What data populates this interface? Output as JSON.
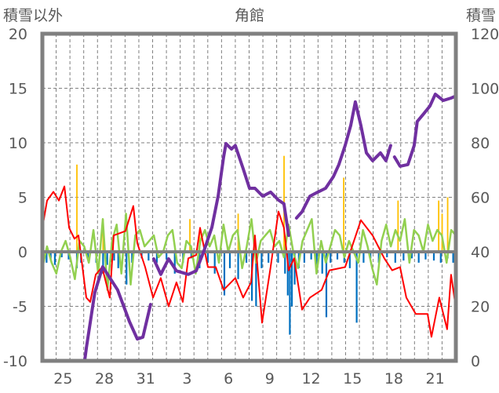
{
  "chart_data": {
    "type": "line",
    "title": "角館",
    "ylabel_left": "積雪以外",
    "ylabel_right": "積雪",
    "ylim_left": [
      -10,
      20
    ],
    "ylim_right": [
      0,
      120
    ],
    "yticks_left": [
      "20",
      "15",
      "10",
      "5",
      "0",
      "-5",
      "-10"
    ],
    "yticks_right": [
      "120",
      "100",
      "80",
      "60",
      "40",
      "20",
      "0"
    ],
    "xlim_days": [
      0,
      30
    ],
    "xticks": [
      {
        "day": 1.5,
        "label": "25"
      },
      {
        "day": 4.5,
        "label": "28"
      },
      {
        "day": 7.5,
        "label": "31"
      },
      {
        "day": 10.5,
        "label": "3"
      },
      {
        "day": 13.5,
        "label": "6"
      },
      {
        "day": 16.5,
        "label": "9"
      },
      {
        "day": 19.5,
        "label": "12"
      },
      {
        "day": 22.5,
        "label": "15"
      },
      {
        "day": 25.5,
        "label": "18"
      },
      {
        "day": 28.5,
        "label": "21"
      }
    ],
    "grid": true,
    "colors": {
      "snow": "#7030a0",
      "temp": "#ff0000",
      "green": "#92d050",
      "blue": "#0070c0",
      "orange": "#ffc000",
      "frame": "#808080"
    },
    "series": [
      {
        "name": "snow_depth",
        "axis": "right",
        "points": [
          [
            0,
            0
          ],
          [
            3.07,
            0
          ],
          [
            3.2,
            5
          ],
          [
            3.5,
            15
          ],
          [
            3.8,
            25
          ],
          [
            4.38,
            34.5
          ],
          [
            5.46,
            26
          ],
          [
            6.32,
            14.4
          ],
          [
            6.89,
            8
          ],
          [
            7.29,
            8.7
          ],
          [
            7.85,
            20.7
          ],
          null,
          [
            8.08,
            37.4
          ],
          [
            8.59,
            31.7
          ],
          [
            9.16,
            37.4
          ],
          [
            9.73,
            33
          ],
          [
            10.59,
            31.7
          ],
          [
            11.16,
            33
          ],
          [
            11.72,
            40.3
          ],
          [
            12.3,
            49
          ],
          [
            12.75,
            60.4
          ],
          [
            13.15,
            74.8
          ],
          [
            13.32,
            79.7
          ],
          [
            13.72,
            77.7
          ],
          [
            14,
            79
          ],
          [
            14.57,
            70.5
          ],
          [
            15.03,
            63.3
          ],
          [
            15.42,
            63.3
          ],
          [
            15.99,
            60.4
          ],
          [
            16.56,
            61.9
          ],
          [
            17.13,
            59
          ],
          [
            17.53,
            57.6
          ],
          [
            17.87,
            46
          ],
          null,
          [
            18.44,
            52.4
          ],
          [
            18.84,
            54.7
          ],
          [
            19.41,
            60.4
          ],
          [
            19.98,
            61.9
          ],
          [
            20.55,
            63.3
          ],
          [
            21.12,
            67.6
          ],
          [
            21.51,
            72
          ],
          [
            21.97,
            79
          ],
          [
            22.37,
            86.3
          ],
          [
            22.71,
            95
          ],
          [
            23.11,
            86.3
          ],
          [
            23.51,
            76.3
          ],
          [
            23.96,
            73.4
          ],
          [
            24.53,
            76.3
          ],
          [
            24.93,
            73.4
          ],
          [
            25.27,
            79
          ],
          null,
          [
            25.55,
            74.8
          ],
          [
            25.95,
            71.4
          ],
          [
            26.52,
            72
          ],
          [
            26.98,
            79
          ],
          [
            27.2,
            87.8
          ],
          [
            27.66,
            90.6
          ],
          [
            28.12,
            93.5
          ],
          [
            28.51,
            97.8
          ],
          [
            29.08,
            95.5
          ],
          [
            29.65,
            96.4
          ],
          [
            29.94,
            97
          ]
        ]
      },
      {
        "name": "temperature",
        "axis": "left",
        "points": [
          [
            0,
            2.2
          ],
          [
            0.34,
            4.7
          ],
          [
            0.8,
            5.5
          ],
          [
            1.2,
            4.7
          ],
          [
            1.6,
            6
          ],
          [
            1.94,
            2.2
          ],
          [
            2.33,
            1.2
          ],
          [
            2.62,
            1.5
          ],
          [
            3.19,
            -4.2
          ],
          [
            3.47,
            -4.6
          ],
          [
            3.87,
            -2.1
          ],
          [
            4.33,
            -1.4
          ],
          [
            4.89,
            -4.2
          ],
          [
            5.18,
            1.5
          ],
          [
            6.03,
            1.9
          ],
          [
            6.6,
            4.2
          ],
          [
            6.89,
            0.8
          ],
          [
            7.46,
            -1.4
          ],
          [
            8.03,
            -4.2
          ],
          [
            8.59,
            -2.4
          ],
          [
            9.16,
            -5
          ],
          [
            9.73,
            -2.8
          ],
          [
            10.19,
            -4.6
          ],
          [
            10.59,
            -0.6
          ],
          [
            11.16,
            -0.3
          ],
          [
            11.44,
            2.2
          ],
          [
            12.01,
            -1.4
          ],
          [
            12.58,
            -1.4
          ],
          [
            13.15,
            -3.5
          ],
          [
            14,
            -2.4
          ],
          [
            14.57,
            -4.2
          ],
          [
            15.14,
            -2.8
          ],
          [
            15.42,
            1.5
          ],
          [
            15.94,
            -6.5
          ],
          [
            16.56,
            -1.4
          ],
          [
            17.13,
            3.7
          ],
          [
            17.53,
            2.2
          ],
          [
            17.87,
            -1.7
          ],
          [
            18.27,
            -0.6
          ],
          [
            18.84,
            -5.3
          ],
          [
            19.41,
            -4.2
          ],
          [
            20.26,
            -3.5
          ],
          [
            20.83,
            -1.7
          ],
          [
            21.97,
            -1.4
          ],
          [
            23.11,
            2.9
          ],
          [
            23.96,
            1.5
          ],
          [
            24.81,
            -0.6
          ],
          [
            25.38,
            -1.7
          ],
          [
            25.95,
            -1.4
          ],
          [
            26.41,
            -4.2
          ],
          [
            27.09,
            -5.7
          ],
          [
            27.95,
            -5.7
          ],
          [
            28.23,
            -7.8
          ],
          [
            28.8,
            -4.2
          ],
          [
            29.37,
            -7.1
          ],
          [
            29.65,
            -2.1
          ],
          [
            29.94,
            -4.6
          ]
        ]
      },
      {
        "name": "green_series",
        "axis": "left",
        "values": [
          -1.5,
          0.5,
          -1,
          -2,
          0,
          1,
          -0.5,
          -2.5,
          1,
          0.5,
          -1,
          2,
          -2,
          3,
          -3.5,
          1,
          2.5,
          -2,
          3.5,
          -3,
          1.5,
          2,
          0.5,
          1,
          1.5,
          -0.5,
          0,
          1.5,
          2,
          -1,
          -1.5,
          1,
          0.5,
          -2,
          1,
          2,
          0.5,
          1.5,
          -1,
          2.5,
          0,
          1.5,
          2,
          -1.5,
          0.5,
          3,
          -1,
          1,
          1.5,
          2,
          0.5,
          1,
          -0.5,
          2.5,
          0,
          -1.5,
          1,
          2,
          3,
          -2,
          1,
          -1,
          0.5,
          2,
          1.5,
          -0.5,
          1,
          0,
          -1,
          2,
          0.5,
          -1.5,
          -3,
          1,
          2.5,
          0.5,
          2,
          1,
          3,
          -1,
          2,
          1.5,
          0,
          2.5,
          1,
          2,
          1.5,
          -1,
          2,
          1.5
        ]
      },
      {
        "name": "blue_bars",
        "axis": "left",
        "points": [
          [
            0.3,
            -1
          ],
          [
            0.6,
            -0.8
          ],
          [
            0.9,
            -1.2
          ],
          [
            1.4,
            -0.5
          ],
          [
            1.9,
            -0.7
          ],
          [
            2.5,
            -1.5
          ],
          [
            2.8,
            -1
          ],
          [
            3.3,
            -0.6
          ],
          [
            3.9,
            -1
          ],
          [
            4.4,
            -2
          ],
          [
            4.7,
            -1.2
          ],
          [
            5.2,
            -0.8
          ],
          [
            5.5,
            -1.5
          ],
          [
            6.1,
            -3
          ],
          [
            6.5,
            -1
          ],
          [
            7.2,
            -0.6
          ],
          [
            7.7,
            -0.8
          ],
          [
            8.3,
            -1
          ],
          [
            9,
            -0.7
          ],
          [
            9.6,
            -2
          ],
          [
            10.2,
            -1
          ],
          [
            10.8,
            -0.6
          ],
          [
            11.4,
            -1.5
          ],
          [
            12,
            -1
          ],
          [
            12.5,
            -2
          ],
          [
            13.2,
            -4
          ],
          [
            13.6,
            -1.5
          ],
          [
            14.2,
            -2.5
          ],
          [
            14.8,
            -1
          ],
          [
            15.2,
            -4.5
          ],
          [
            15.5,
            -5
          ],
          [
            15.9,
            -1.5
          ],
          [
            16.4,
            -1
          ],
          [
            17.1,
            -1
          ],
          [
            17.6,
            -2
          ],
          [
            17.8,
            -4
          ],
          [
            17.95,
            -7.6
          ],
          [
            18.1,
            -5
          ],
          [
            18.3,
            -3
          ],
          [
            18.6,
            -1.5
          ],
          [
            19,
            -1
          ],
          [
            19.5,
            -0.7
          ],
          [
            19.9,
            -1.5
          ],
          [
            20.3,
            -2
          ],
          [
            20.6,
            -6
          ],
          [
            20.9,
            -1
          ],
          [
            21.4,
            -0.7
          ],
          [
            21.9,
            -1
          ],
          [
            22.3,
            -1.5
          ],
          [
            22.8,
            -6.5
          ],
          [
            23.3,
            -1
          ],
          [
            23.8,
            -0.6
          ],
          [
            24.4,
            -1
          ],
          [
            25,
            -0.5
          ],
          [
            25.6,
            -1
          ],
          [
            26.2,
            -0.8
          ],
          [
            26.8,
            -0.6
          ],
          [
            27.3,
            -1
          ],
          [
            27.8,
            -0.7
          ],
          [
            28.4,
            -0.8
          ],
          [
            28.9,
            -1
          ],
          [
            29.4,
            -0.6
          ],
          [
            29.8,
            -1
          ]
        ]
      },
      {
        "name": "orange_bars",
        "axis": "left",
        "points": [
          [
            2.5,
            8
          ],
          [
            4.4,
            3
          ],
          [
            10.7,
            3
          ],
          [
            11.4,
            2
          ],
          [
            14.2,
            3.5
          ],
          [
            17.53,
            8.8
          ],
          [
            21.86,
            6.8
          ],
          [
            25.8,
            4.7
          ],
          [
            28.75,
            4.7
          ],
          [
            29,
            3.5
          ],
          [
            29.4,
            5
          ],
          [
            29.9,
            4.7
          ]
        ]
      }
    ]
  }
}
